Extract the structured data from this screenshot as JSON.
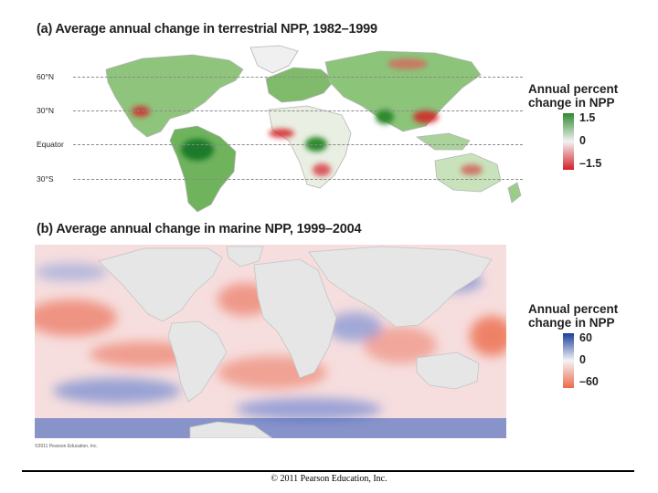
{
  "panel_a": {
    "title": "(a) Average annual change in terrestrial NPP, 1982–1999",
    "latitudes": [
      "60°N",
      "30°N",
      "Equator",
      "30°S"
    ],
    "legend": {
      "title_line1": "Annual percent",
      "title_line2": "change in NPP",
      "max": "1.5",
      "mid": "0",
      "min": "–1.5",
      "color_high": "#2f8a2f",
      "color_mid": "#f2f2f2",
      "color_low": "#d52027"
    }
  },
  "panel_b": {
    "title": "(b) Average annual change in marine NPP, 1999–2004",
    "legend": {
      "title_line1": "Annual percent",
      "title_line2": "change in NPP",
      "max": "60",
      "mid": "0",
      "min": "–60",
      "color_high": "#1a3f9c",
      "color_mid": "#f4f4f4",
      "color_low": "#ec6a4b"
    }
  },
  "copyright_small": "©2011 Pearson Education, Inc.",
  "footer": "© 2011 Pearson Education, Inc."
}
